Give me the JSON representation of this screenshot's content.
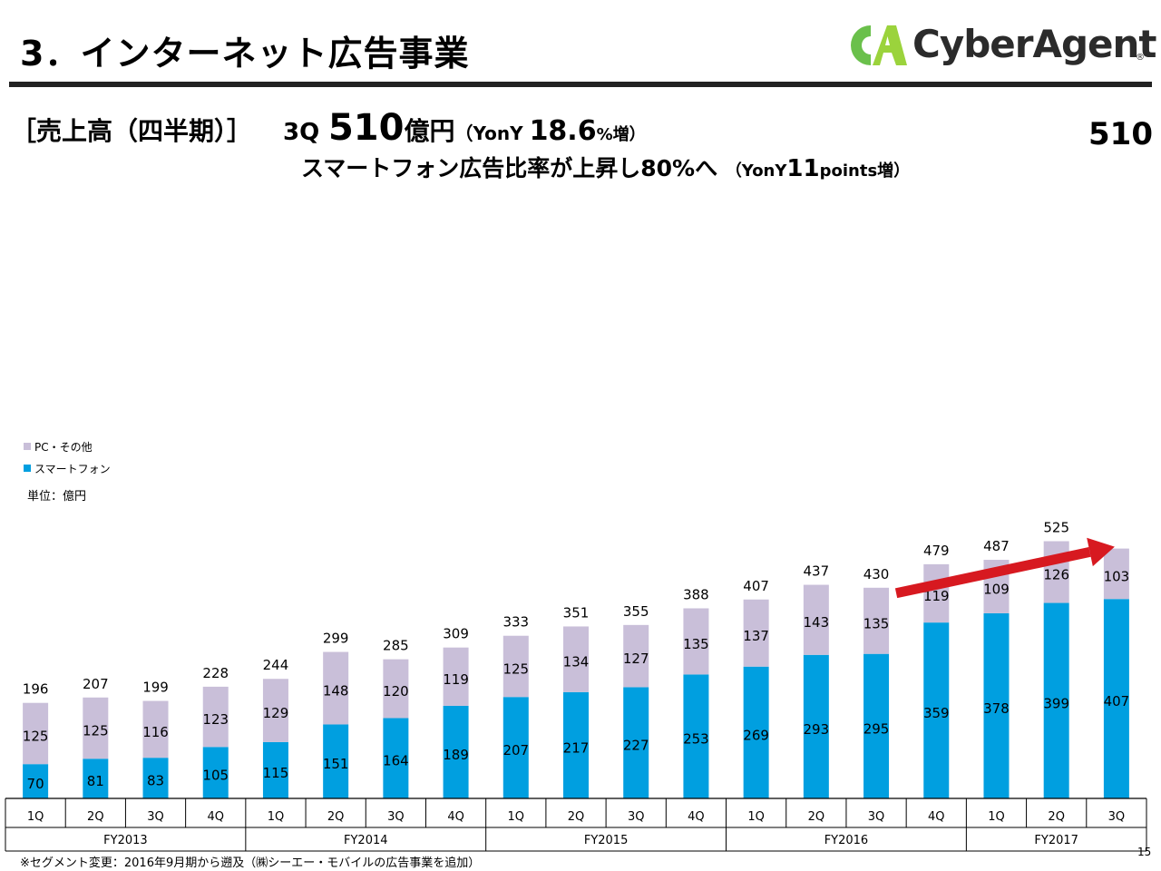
{
  "header": {
    "title": "3．インターネット広告事業",
    "brand": "CyberAgent",
    "brand_mark": "CA",
    "registered": "®"
  },
  "subhead": {
    "section": "［売上高（四半期）］",
    "quarter": "3Q",
    "amount": "510",
    "unit": "億円",
    "yoy_open": "（YonY ",
    "yoy_value": "18.6",
    "yoy_suffix": "%増）",
    "line2": "スマートフォン広告比率が上昇し80%へ",
    "line2_yoy_open": "（YonY",
    "line2_yoy_value": "11",
    "line2_yoy_suffix": "points増）"
  },
  "legend": {
    "pc": "PC・その他",
    "sp": "スマートフォン",
    "unit_label": "単位：億円"
  },
  "colors": {
    "smartphone": "#009FE0",
    "pc_other": "#C9BFD9",
    "arrow": "#D71920",
    "logo_green": "#6AC04B",
    "logo_lime": "#9BD33C"
  },
  "chart_data": {
    "type": "bar",
    "stacked": true,
    "title": "売上高（四半期）",
    "unit": "億円",
    "categories": [
      "1Q",
      "2Q",
      "3Q",
      "4Q",
      "1Q",
      "2Q",
      "3Q",
      "4Q",
      "1Q",
      "2Q",
      "3Q",
      "4Q",
      "1Q",
      "2Q",
      "3Q",
      "4Q",
      "1Q",
      "2Q",
      "3Q"
    ],
    "fiscal_years": [
      {
        "label": "FY2013",
        "count": 4
      },
      {
        "label": "FY2014",
        "count": 4
      },
      {
        "label": "FY2015",
        "count": 4
      },
      {
        "label": "FY2016",
        "count": 4
      },
      {
        "label": "FY2017",
        "count": 3
      }
    ],
    "series": [
      {
        "name": "スマートフォン",
        "values": [
          70,
          81,
          83,
          105,
          115,
          151,
          164,
          189,
          207,
          217,
          227,
          253,
          269,
          293,
          295,
          359,
          378,
          399,
          407
        ]
      },
      {
        "name": "PC・その他",
        "values": [
          125,
          125,
          116,
          123,
          129,
          148,
          120,
          119,
          125,
          134,
          127,
          135,
          137,
          143,
          135,
          119,
          109,
          126,
          103
        ]
      }
    ],
    "totals": [
      196,
      207,
      199,
      228,
      244,
      299,
      285,
      309,
      333,
      351,
      355,
      388,
      407,
      437,
      430,
      479,
      487,
      525,
      510
    ],
    "ylim": [
      0,
      550
    ],
    "annotation": {
      "text": "510",
      "from_index": 14,
      "to_index": 18
    }
  },
  "footnote": "※セグメント変更：2016年9月期から遡及（㈱シーエー・モバイルの広告事業を追加）",
  "page_number": "15"
}
